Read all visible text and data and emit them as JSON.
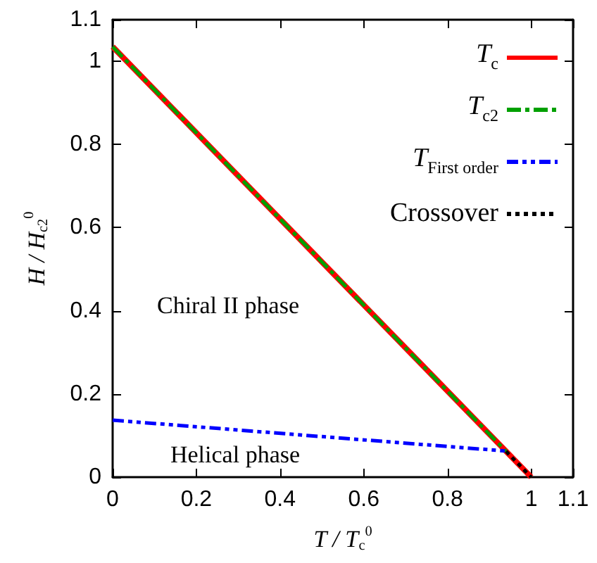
{
  "chart_data": {
    "type": "line",
    "xlabel": "T / T$_{c}$$^{0}$",
    "ylabel": "H / H$_{c2}$$^{0}$",
    "xlim": [
      0,
      1.1
    ],
    "xticks": [
      0,
      0.2,
      0.4,
      0.6,
      0.8,
      1,
      1.1
    ],
    "ylim": [
      0,
      1.1
    ],
    "yticks": [
      0,
      0.2,
      0.4,
      0.6,
      0.8,
      1,
      1.1
    ],
    "grid": false,
    "legend": "top right",
    "marker": "none",
    "series": [
      {
        "name": "T$_{c}$",
        "color": "#ff0000",
        "line_style": "solid",
        "x": [
          0,
          1
        ],
        "values": [
          1.035,
          0
        ]
      },
      {
        "name": "T$_{c2}$",
        "color": "#00a000",
        "line_style": "dashdot",
        "x": [
          0,
          0.94
        ],
        "values": [
          1.035,
          0.062
        ]
      },
      {
        "name": "T$_{First order}$",
        "color": "#0000ff",
        "line_style": "dashdotdot",
        "x": [
          0,
          0.937
        ],
        "values": [
          0.137,
          0.063
        ]
      },
      {
        "name": "Crossover",
        "color": "#000000",
        "line_style": "dotted",
        "x": [
          0.94,
          1
        ],
        "values": [
          0.062,
          0
        ]
      }
    ],
    "annotations": [
      "Chiral II phase",
      "Helical phase"
    ]
  }
}
